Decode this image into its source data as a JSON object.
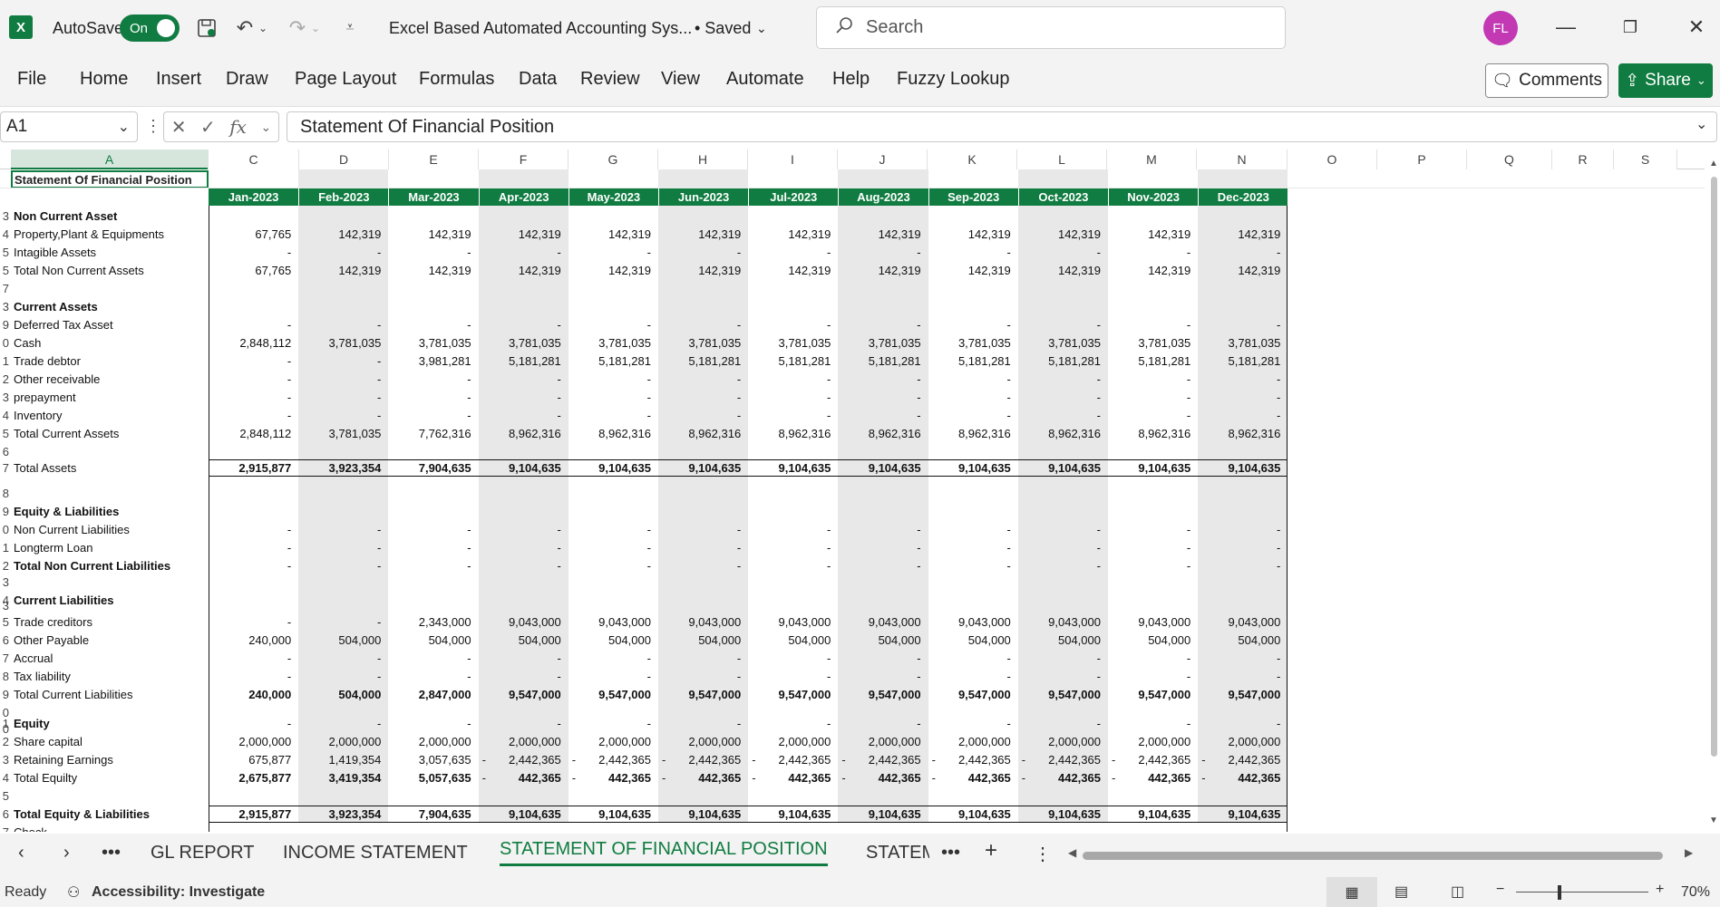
{
  "titlebar": {
    "app_icon": "excel-logo",
    "autosave_label": "AutoSave",
    "autosave_state": "On",
    "doc_title": "Excel Based Automated Accounting Sys...",
    "saved_state": "• Saved",
    "search_placeholder": "Search",
    "avatar_initials": "FL"
  },
  "ribbon": {
    "tabs": [
      "File",
      "Home",
      "Insert",
      "Draw",
      "Page Layout",
      "Formulas",
      "Data",
      "Review",
      "View",
      "Automate",
      "Help",
      "Fuzzy Lookup"
    ],
    "comments_label": "Comments",
    "share_label": "Share"
  },
  "formula_bar": {
    "name_box": "A1",
    "fx_label": "fx",
    "formula": "Statement Of Financial Position"
  },
  "grid": {
    "col_headers": [
      "A",
      "C",
      "D",
      "E",
      "F",
      "G",
      "H",
      "I",
      "J",
      "K",
      "L",
      "M",
      "N",
      "O",
      "P",
      "Q",
      "R",
      "S"
    ],
    "title": "Statement Of Financial Position",
    "months": [
      "Jan-2023",
      "Feb-2023",
      "Mar-2023",
      "Apr-2023",
      "May-2023",
      "Jun-2023",
      "Jul-2023",
      "Aug-2023",
      "Sep-2023",
      "Oct-2023",
      "Nov-2023",
      "Dec-2023"
    ],
    "rows": [
      {
        "n": "3",
        "label": "Non Current Asset",
        "bold": true,
        "values": []
      },
      {
        "n": "4",
        "label": "Property,Plant & Equipments",
        "values": [
          "67,765",
          "142,319",
          "142,319",
          "142,319",
          "142,319",
          "142,319",
          "142,319",
          "142,319",
          "142,319",
          "142,319",
          "142,319",
          "142,319"
        ]
      },
      {
        "n": "5",
        "label": "Intagible Assets",
        "values": [
          "-",
          "-",
          "-",
          "-",
          "-",
          "-",
          "-",
          "-",
          "-",
          "-",
          "-",
          "-"
        ]
      },
      {
        "n": "5",
        "label": "Total Non Current Assets",
        "values": [
          "67,765",
          "142,319",
          "142,319",
          "142,319",
          "142,319",
          "142,319",
          "142,319",
          "142,319",
          "142,319",
          "142,319",
          "142,319",
          "142,319"
        ]
      },
      {
        "n": "7",
        "label": "",
        "values": []
      },
      {
        "n": "3",
        "label": "Current Assets",
        "bold": true,
        "values": []
      },
      {
        "n": "9",
        "label": "Deferred Tax Asset",
        "values": [
          "-",
          "-",
          "-",
          "-",
          "-",
          "-",
          "-",
          "-",
          "-",
          "-",
          "-",
          "-"
        ]
      },
      {
        "n": "0",
        "label": "Cash",
        "values": [
          "2,848,112",
          "3,781,035",
          "3,781,035",
          "3,781,035",
          "3,781,035",
          "3,781,035",
          "3,781,035",
          "3,781,035",
          "3,781,035",
          "3,781,035",
          "3,781,035",
          "3,781,035"
        ]
      },
      {
        "n": "1",
        "label": "Trade debtor",
        "values": [
          "-",
          "-",
          "3,981,281",
          "5,181,281",
          "5,181,281",
          "5,181,281",
          "5,181,281",
          "5,181,281",
          "5,181,281",
          "5,181,281",
          "5,181,281",
          "5,181,281"
        ]
      },
      {
        "n": "2",
        "label": "Other receivable",
        "values": [
          "-",
          "-",
          "-",
          "-",
          "-",
          "-",
          "-",
          "-",
          "-",
          "-",
          "-",
          "-"
        ]
      },
      {
        "n": "3",
        "label": "prepayment",
        "values": [
          "-",
          "-",
          "-",
          "-",
          "-",
          "-",
          "-",
          "-",
          "-",
          "-",
          "-",
          "-"
        ]
      },
      {
        "n": "4",
        "label": "Inventory",
        "values": [
          "-",
          "-",
          "-",
          "-",
          "-",
          "-",
          "-",
          "-",
          "-",
          "-",
          "-",
          "-"
        ]
      },
      {
        "n": "5",
        "label": "Total Current Assets",
        "values": [
          "2,848,112",
          "3,781,035",
          "7,762,316",
          "8,962,316",
          "8,962,316",
          "8,962,316",
          "8,962,316",
          "8,962,316",
          "8,962,316",
          "8,962,316",
          "8,962,316",
          "8,962,316"
        ]
      },
      {
        "n": "6",
        "label": "",
        "values": []
      },
      {
        "n": "7",
        "label": "Total Assets",
        "boldvals": true,
        "boxed": true,
        "values": [
          "2,915,877",
          "3,923,354",
          "7,904,635",
          "9,104,635",
          "9,104,635",
          "9,104,635",
          "9,104,635",
          "9,104,635",
          "9,104,635",
          "9,104,635",
          "9,104,635",
          "9,104,635"
        ]
      },
      {
        "n": "8",
        "label": "",
        "values": []
      },
      {
        "n": "9",
        "label": "Equity & Liabilities",
        "bold": true,
        "values": []
      },
      {
        "n": "0",
        "label": "Non Current Liabilities",
        "values": [
          "-",
          "-",
          "-",
          "-",
          "-",
          "-",
          "-",
          "-",
          "-",
          "-",
          "-",
          "-"
        ]
      },
      {
        "n": "1",
        "label": "Longterm Loan",
        "values": [
          "-",
          "-",
          "-",
          "-",
          "-",
          "-",
          "-",
          "-",
          "-",
          "-",
          "-",
          "-"
        ]
      },
      {
        "n": "2",
        "label": "Total Non Current Liabilities",
        "bold": true,
        "values": [
          "-",
          "-",
          "-",
          "-",
          "-",
          "-",
          "-",
          "-",
          "-",
          "-",
          "-",
          "-"
        ]
      },
      {
        "n": "3",
        "label": "",
        "values": []
      },
      {
        "n": "4",
        "label": "Current Liabilities",
        "bold": true,
        "values": []
      },
      {
        "n": "3",
        "label": "",
        "values": []
      },
      {
        "n": "5",
        "label": "Trade creditors",
        "values": [
          "-",
          "-",
          "2,343,000",
          "9,043,000",
          "9,043,000",
          "9,043,000",
          "9,043,000",
          "9,043,000",
          "9,043,000",
          "9,043,000",
          "9,043,000",
          "9,043,000"
        ]
      },
      {
        "n": "6",
        "label": "Other Payable",
        "values": [
          "240,000",
          "504,000",
          "504,000",
          "504,000",
          "504,000",
          "504,000",
          "504,000",
          "504,000",
          "504,000",
          "504,000",
          "504,000",
          "504,000"
        ]
      },
      {
        "n": "7",
        "label": "Accrual",
        "values": [
          "-",
          "-",
          "-",
          "-",
          "-",
          "-",
          "-",
          "-",
          "-",
          "-",
          "-",
          "-"
        ]
      },
      {
        "n": "8",
        "label": "Tax liability",
        "values": [
          "-",
          "-",
          "-",
          "-",
          "-",
          "-",
          "-",
          "-",
          "-",
          "-",
          "-",
          "-"
        ]
      },
      {
        "n": "9",
        "label": "Total Current Liabilities",
        "boldvals": true,
        "values": [
          "240,000",
          "504,000",
          "2,847,000",
          "9,547,000",
          "9,547,000",
          "9,547,000",
          "9,547,000",
          "9,547,000",
          "9,547,000",
          "9,547,000",
          "9,547,000",
          "9,547,000"
        ]
      },
      {
        "n": "0",
        "label": "",
        "values": []
      },
      {
        "n": "1",
        "label": "Equity",
        "bold": true,
        "values": [
          "-",
          "-",
          "-",
          "-",
          "-",
          "-",
          "-",
          "-",
          "-",
          "-",
          "-",
          "-"
        ]
      },
      {
        "n": "0",
        "label": "",
        "values": []
      },
      {
        "n": "2",
        "label": "Share capital",
        "values": [
          "2,000,000",
          "2,000,000",
          "2,000,000",
          "2,000,000",
          "2,000,000",
          "2,000,000",
          "2,000,000",
          "2,000,000",
          "2,000,000",
          "2,000,000",
          "2,000,000",
          "2,000,000"
        ]
      },
      {
        "n": "3",
        "label": "Retaining Earnings",
        "neg": [
          false,
          false,
          false,
          true,
          true,
          true,
          true,
          true,
          true,
          true,
          true,
          true
        ],
        "values": [
          "675,877",
          "1,419,354",
          "3,057,635",
          "2,442,365",
          "2,442,365",
          "2,442,365",
          "2,442,365",
          "2,442,365",
          "2,442,365",
          "2,442,365",
          "2,442,365",
          "2,442,365"
        ]
      },
      {
        "n": "4",
        "label": "Total Equilty",
        "boldvals": true,
        "neg": [
          false,
          false,
          false,
          true,
          true,
          true,
          true,
          true,
          true,
          true,
          true,
          true
        ],
        "values": [
          "2,675,877",
          "3,419,354",
          "5,057,635",
          "442,365",
          "442,365",
          "442,365",
          "442,365",
          "442,365",
          "442,365",
          "442,365",
          "442,365",
          "442,365"
        ]
      },
      {
        "n": "5",
        "label": "",
        "values": []
      },
      {
        "n": "6",
        "label": "Total Equity & Liabilities",
        "bold": true,
        "boldvals": true,
        "boxed": true,
        "values": [
          "2,915,877",
          "3,923,354",
          "7,904,635",
          "9,104,635",
          "9,104,635",
          "9,104,635",
          "9,104,635",
          "9,104,635",
          "9,104,635",
          "9,104,635",
          "9,104,635",
          "9,104,635"
        ]
      },
      {
        "n": "7",
        "label": "Check",
        "values": [
          "-",
          "-",
          "-",
          "-",
          "-",
          "-",
          "-",
          "-",
          "-",
          "-",
          "-",
          "-"
        ]
      }
    ]
  },
  "sheets": {
    "tabs": [
      "GL REPORT",
      "INCOME STATEMENT",
      "STATEMENT OF FINANCIAL POSITION",
      "STATEM"
    ],
    "active": "STATEMENT OF FINANCIAL POSITION"
  },
  "status": {
    "ready": "Ready",
    "accessibility": "Accessibility: Investigate",
    "zoom": "70%"
  },
  "colors": {
    "accent": "#107c41",
    "band": "#e8e8e8"
  }
}
